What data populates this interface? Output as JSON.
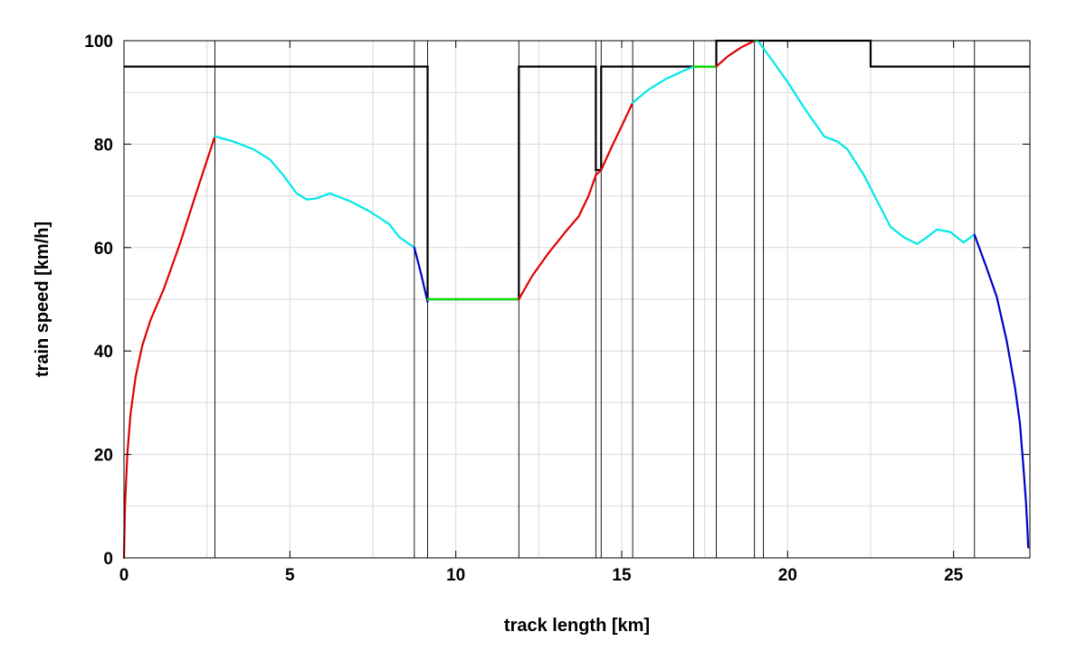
{
  "chart_data": {
    "type": "line",
    "xlabel": "track length [km]",
    "ylabel": "train speed [km/h]",
    "xlim": [
      0,
      27.3
    ],
    "ylim": [
      0,
      100
    ],
    "x_ticks": [
      0,
      5,
      10,
      15,
      20,
      25
    ],
    "y_ticks": [
      0,
      20,
      40,
      60,
      80,
      100
    ],
    "grid": true,
    "colors": {
      "speed_limit": "#000000",
      "accelerating": "#e00000",
      "constant_speed": "#00e000",
      "coasting": "#00e8e8",
      "braking": "#0000c8",
      "grid": "#d9d9d9",
      "section_markers": "#000000"
    },
    "section_markers_x": [
      2.74,
      8.75,
      9.15,
      11.9,
      14.22,
      14.38,
      15.33,
      17.17,
      17.85,
      19.0,
      19.27,
      25.63
    ],
    "speed_limit": {
      "x": [
        0,
        9.15,
        9.15,
        11.9,
        11.9,
        14.22,
        14.22,
        14.38,
        14.38,
        17.85,
        17.85,
        22.5,
        22.5,
        27.3
      ],
      "y": [
        95,
        95,
        50,
        50,
        95,
        95,
        75,
        75,
        95,
        95,
        100,
        100,
        95,
        95
      ]
    },
    "speed_profile": [
      {
        "mode": "accelerating",
        "x": [
          0,
          0.03,
          0.1,
          0.2,
          0.35,
          0.55,
          0.8,
          1.2,
          1.7,
          2.2,
          2.74
        ],
        "y": [
          0,
          10,
          20,
          28,
          35,
          41,
          46,
          52,
          61,
          71,
          81.5
        ]
      },
      {
        "mode": "coasting",
        "x": [
          2.74,
          3.3,
          3.9,
          4.4,
          4.8,
          5.2,
          5.5,
          5.8,
          6.2,
          6.8,
          7.4,
          8.0,
          8.3,
          8.75
        ],
        "y": [
          81.5,
          80.5,
          79,
          77,
          74,
          70.5,
          69.3,
          69.5,
          70.5,
          69,
          67,
          64.5,
          62,
          60
        ]
      },
      {
        "mode": "braking",
        "x": [
          8.75,
          8.95,
          9.15
        ],
        "y": [
          60,
          55,
          49.5
        ]
      },
      {
        "mode": "constant_speed",
        "x": [
          9.15,
          11.9
        ],
        "y": [
          50,
          50
        ]
      },
      {
        "mode": "accelerating",
        "x": [
          11.9,
          12.3,
          12.8,
          13.3,
          13.7,
          14.0,
          14.22,
          14.38,
          14.7,
          15.0,
          15.33
        ],
        "y": [
          50,
          54.5,
          59,
          63,
          66,
          70,
          74,
          75,
          79.5,
          83.5,
          88
        ]
      },
      {
        "mode": "coasting",
        "x": [
          15.33,
          15.8,
          16.3,
          16.8,
          17.17
        ],
        "y": [
          88,
          90.5,
          92.5,
          94,
          95
        ]
      },
      {
        "mode": "constant_speed",
        "x": [
          17.17,
          17.85
        ],
        "y": [
          95,
          95
        ]
      },
      {
        "mode": "accelerating",
        "x": [
          17.85,
          18.2,
          18.6,
          19.0
        ],
        "y": [
          95,
          97,
          98.7,
          100
        ]
      },
      {
        "mode": "constant_speed",
        "x": [
          19.0,
          19.1
        ],
        "y": [
          100,
          100
        ]
      },
      {
        "mode": "coasting",
        "x": [
          19.1,
          19.5,
          20.0,
          20.5,
          21.1,
          21.5,
          21.8,
          22.3,
          22.7,
          23.1,
          23.5,
          23.9,
          24.2,
          24.5,
          24.9,
          25.3,
          25.63
        ],
        "y": [
          100,
          96.5,
          92,
          87,
          81.5,
          80.5,
          79,
          74,
          69,
          64,
          62,
          60.7,
          62,
          63.5,
          63,
          61,
          62.5
        ]
      },
      {
        "mode": "braking",
        "x": [
          25.63,
          26.0,
          26.3,
          26.6,
          26.85,
          27.0,
          27.1,
          27.18,
          27.23,
          27.25
        ],
        "y": [
          62.5,
          56,
          50.5,
          42,
          33,
          26,
          18,
          11,
          5,
          2
        ]
      }
    ]
  }
}
